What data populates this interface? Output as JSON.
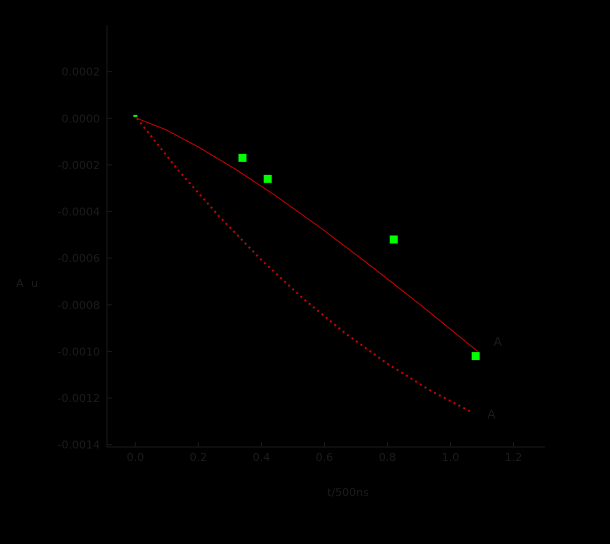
{
  "figure": {
    "background": "#000000",
    "text_color": "#1c1c1c",
    "axis_color": "#1a1a1a",
    "accent_red": "#cc0000",
    "accent_green": "#00ff00"
  },
  "chart_data": {
    "type": "line",
    "title": "",
    "xlabel": "t/500ns",
    "ylabel": "A u",
    "xlim": [
      -0.09,
      1.3
    ],
    "ylim": [
      -0.00141,
      0.0004
    ],
    "grid": false,
    "legend": "none",
    "x_ticks": {
      "values": [
        0.0,
        0.2,
        0.4,
        0.6,
        0.8,
        1.0,
        1.2
      ],
      "labels": [
        "0.0",
        "0.2",
        "0.4",
        "0.6",
        "0.8",
        "1.0",
        "1.2"
      ]
    },
    "y_ticks": {
      "values": [
        0.0002,
        0.0,
        -0.0002,
        -0.0004,
        -0.0006,
        -0.0008,
        -0.001,
        -0.0012,
        -0.0014
      ],
      "labels": [
        "0.0002",
        "0.0000",
        "-0.0002",
        "-0.0004",
        "-0.0006",
        "-0.0008",
        "-0.0010",
        "-0.0012",
        "-0.0014"
      ]
    },
    "series": [
      {
        "name": "fit-curve-upper",
        "type": "line",
        "style": "solid",
        "color": "#cc0000",
        "width": 1,
        "points": [
          [
            0.005,
            0.0
          ],
          [
            0.097,
            -4.9e-05
          ],
          [
            0.201,
            -0.000124
          ],
          [
            0.318,
            -0.000219
          ],
          [
            0.447,
            -0.000334
          ],
          [
            0.589,
            -0.000471
          ],
          [
            0.742,
            -0.000628
          ],
          [
            0.909,
            -0.000805
          ],
          [
            1.088,
            -0.001002
          ]
        ]
      },
      {
        "name": "fit-curve-lower",
        "type": "line",
        "style": "dotted",
        "color": "#cc0000",
        "width": 2,
        "points": [
          [
            0.005,
            0.0
          ],
          [
            0.135,
            -0.000221
          ],
          [
            0.266,
            -0.000421
          ],
          [
            0.398,
            -0.000605
          ],
          [
            0.53,
            -0.000771
          ],
          [
            0.664,
            -0.00092
          ],
          [
            0.799,
            -0.001052
          ],
          [
            0.935,
            -0.001167
          ],
          [
            1.072,
            -0.001264
          ]
        ]
      },
      {
        "name": "measured-points",
        "type": "scatter",
        "marker": "square",
        "size": 8,
        "color": "#00ff00",
        "points": [
          [
            0.34,
            -0.00017
          ],
          [
            0.42,
            -0.00026
          ],
          [
            0.82,
            -0.00052
          ],
          [
            1.08,
            -0.00102
          ]
        ]
      },
      {
        "name": "origin-mark",
        "type": "scatter",
        "marker": "dash",
        "size": 4,
        "color": "#00ff00",
        "points": [
          [
            0.0,
            1e-05
          ]
        ]
      }
    ],
    "annotations": [
      {
        "text": "A",
        "x": 1.15,
        "y": -0.00096
      },
      {
        "text": "A",
        "x": 1.13,
        "y": -0.00127
      }
    ]
  }
}
